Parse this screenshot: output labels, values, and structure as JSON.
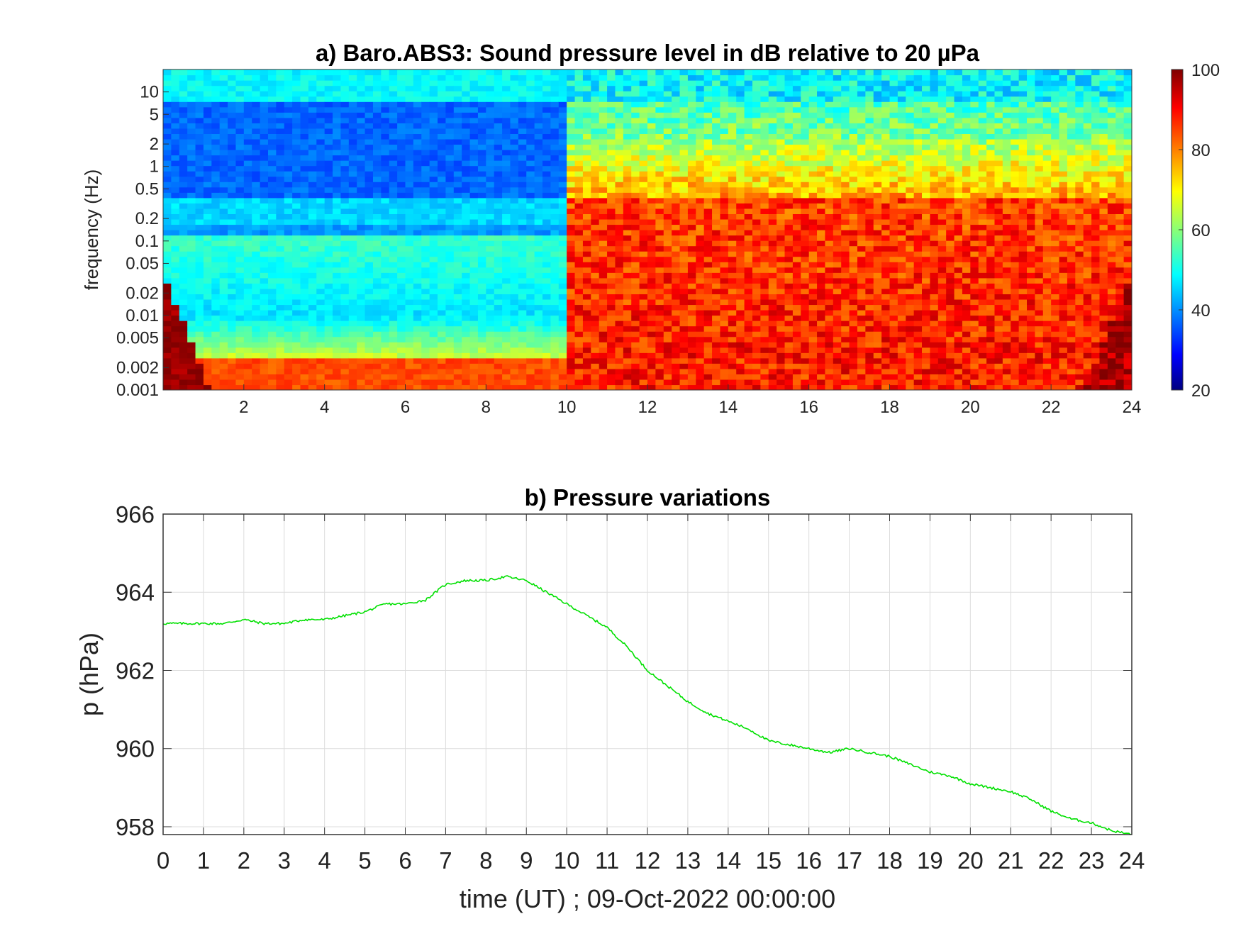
{
  "chart_data": [
    {
      "type": "heatmap",
      "title": "a) Baro.ABS3: Sound pressure level in dB relative to 20 µPa",
      "xlabel": "",
      "ylabel": "frequency (Hz)",
      "x_ticks": [
        2,
        4,
        6,
        8,
        10,
        12,
        14,
        16,
        18,
        20,
        22,
        24
      ],
      "y_ticks": [
        10,
        5,
        2,
        1,
        0.5,
        0.2,
        0.1,
        0.05,
        0.02,
        0.01,
        0.005,
        0.002,
        0.001
      ],
      "y_scale": "log",
      "xlim": [
        0,
        24
      ],
      "ylim": [
        0.001,
        20
      ],
      "colorbar": {
        "min": 20,
        "max": 100,
        "ticks": [
          100,
          80,
          60,
          40,
          20
        ],
        "colormap": "jet"
      },
      "description_values": {
        "quiet_period_hours": [
          0,
          10
        ],
        "quiet_level_db_above_1Hz": 40,
        "quiet_level_db_low_freq": 80,
        "active_period_hours": [
          10,
          24
        ],
        "active_level_db_mid_freq": 85,
        "active_level_db_high_freq": 55
      }
    },
    {
      "type": "line",
      "title": "b) Pressure variations",
      "xlabel": "time (UT) ; 09-Oct-2022 00:00:00",
      "ylabel": "p (hPa)",
      "x_ticks": [
        0,
        1,
        2,
        3,
        4,
        5,
        6,
        7,
        8,
        9,
        10,
        11,
        12,
        13,
        14,
        15,
        16,
        17,
        18,
        19,
        20,
        21,
        22,
        23,
        24
      ],
      "y_ticks": [
        966,
        964,
        962,
        960,
        958
      ],
      "xlim": [
        0,
        24
      ],
      "ylim": [
        957.8,
        966
      ],
      "grid": true,
      "series": [
        {
          "color": "#00e000",
          "x": [
            0,
            0.5,
            1,
            1.5,
            2,
            2.5,
            3,
            3.5,
            4,
            4.5,
            5,
            5.5,
            6,
            6.5,
            7,
            7.5,
            8,
            8.5,
            9,
            9.5,
            10,
            10.5,
            11,
            11.5,
            12,
            12.5,
            13,
            13.5,
            14,
            14.5,
            15,
            15.5,
            16,
            16.5,
            17,
            17.5,
            18,
            18.5,
            19,
            19.5,
            20,
            20.5,
            21,
            21.5,
            22,
            22.5,
            23,
            23.5,
            24
          ],
          "values": [
            963.2,
            963.2,
            963.2,
            963.2,
            963.3,
            963.2,
            963.2,
            963.3,
            963.3,
            963.4,
            963.5,
            963.7,
            963.7,
            963.8,
            964.2,
            964.3,
            964.3,
            964.4,
            964.3,
            964.0,
            963.7,
            963.4,
            963.1,
            962.6,
            962.0,
            961.6,
            961.2,
            960.9,
            960.7,
            960.5,
            960.2,
            960.1,
            960.0,
            959.9,
            960.0,
            959.9,
            959.8,
            959.6,
            959.4,
            959.3,
            959.1,
            959.0,
            958.9,
            958.7,
            958.4,
            958.2,
            958.1,
            957.9,
            957.8
          ]
        }
      ]
    }
  ]
}
